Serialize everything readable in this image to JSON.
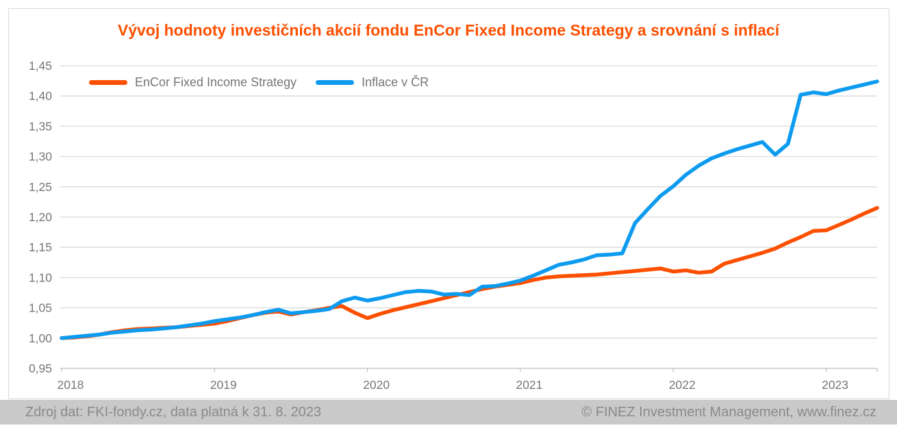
{
  "title": {
    "text": "Vývoj hodnoty investičních akcií fondu EnCor Fixed Income Strategy a srovnání s inflací"
  },
  "legend": [
    {
      "label": "EnCor Fixed Income Strategy",
      "series": "fund"
    },
    {
      "label": "Inflace v ČR",
      "series": "inflation"
    }
  ],
  "footer": {
    "source": "Zdroj dat: FKI-fondy.cz, data platná k 31. 8. 2023",
    "copyright": "© FINEZ Investment Management, www.finez.cz"
  },
  "colors": {
    "accent_orange": "#fc4f00",
    "accent_blue": "#0d9bf0",
    "gridline": "#d9d9d9",
    "axis_line": "#bfbfbf",
    "axis_text": "#767676",
    "legend_text": "#757575",
    "footer_bg": "#c9c9c9",
    "footer_text": "#8a8a8a",
    "frame_border": "#d9d9d9"
  },
  "chart_data": {
    "type": "line",
    "title": "Vývoj hodnoty investičních akcií fondu EnCor Fixed Income Strategy a srovnání s inflací",
    "xlabel": "",
    "ylabel": "",
    "ylim": [
      0.95,
      1.45
    ],
    "grid": "horizontal",
    "legend_position": "top-left-inside",
    "frequency": "monthly",
    "start": "2018-01",
    "as_of_note": "data platná k 31. 8. 2023",
    "x_ticks": [
      {
        "label": "2018",
        "month_index": 0
      },
      {
        "label": "2019",
        "month_index": 12
      },
      {
        "label": "2020",
        "month_index": 24
      },
      {
        "label": "2021",
        "month_index": 36
      },
      {
        "label": "2022",
        "month_index": 48
      },
      {
        "label": "2023",
        "month_index": 60
      }
    ],
    "y_ticks": [
      {
        "label": "1,45",
        "value": 1.45
      },
      {
        "label": "1,40",
        "value": 1.4
      },
      {
        "label": "1,35",
        "value": 1.35
      },
      {
        "label": "1,30",
        "value": 1.3
      },
      {
        "label": "1,25",
        "value": 1.25
      },
      {
        "label": "1,20",
        "value": 1.2
      },
      {
        "label": "1,15",
        "value": 1.15
      },
      {
        "label": "1,10",
        "value": 1.1
      },
      {
        "label": "1,05",
        "value": 1.05
      },
      {
        "label": "1,00",
        "value": 1.0
      },
      {
        "label": "0,95",
        "value": 0.95
      }
    ],
    "series": [
      {
        "id": "fund",
        "name": "EnCor Fixed Income Strategy",
        "color": "#fc4f00",
        "values": [
          1.0,
          1.001,
          1.003,
          1.006,
          1.01,
          1.013,
          1.015,
          1.016,
          1.017,
          1.018,
          1.02,
          1.022,
          1.024,
          1.028,
          1.033,
          1.038,
          1.042,
          1.044,
          1.039,
          1.043,
          1.046,
          1.05,
          1.053,
          1.042,
          1.033,
          1.04,
          1.046,
          1.051,
          1.056,
          1.061,
          1.066,
          1.071,
          1.076,
          1.081,
          1.085,
          1.088,
          1.091,
          1.096,
          1.1,
          1.102,
          1.103,
          1.104,
          1.105,
          1.107,
          1.109,
          1.111,
          1.113,
          1.115,
          1.11,
          1.112,
          1.108,
          1.11,
          1.123,
          1.129,
          1.135,
          1.141,
          1.148,
          1.158,
          1.167,
          1.177,
          1.178,
          1.187,
          1.196,
          1.206,
          1.215
        ]
      },
      {
        "id": "inflation",
        "name": "Inflace v ČR",
        "color": "#0d9bf0",
        "values": [
          1.0,
          1.002,
          1.004,
          1.006,
          1.009,
          1.011,
          1.013,
          1.014,
          1.016,
          1.018,
          1.021,
          1.024,
          1.028,
          1.031,
          1.034,
          1.038,
          1.043,
          1.047,
          1.041,
          1.043,
          1.045,
          1.048,
          1.061,
          1.067,
          1.062,
          1.066,
          1.071,
          1.076,
          1.078,
          1.077,
          1.072,
          1.073,
          1.071,
          1.085,
          1.086,
          1.09,
          1.095,
          1.103,
          1.112,
          1.121,
          1.125,
          1.13,
          1.137,
          1.138,
          1.14,
          1.19,
          1.213,
          1.235,
          1.251,
          1.27,
          1.285,
          1.297,
          1.305,
          1.312,
          1.318,
          1.324,
          1.303,
          1.321,
          1.402,
          1.406,
          1.403,
          1.409,
          1.414,
          1.419,
          1.424
        ]
      }
    ]
  }
}
